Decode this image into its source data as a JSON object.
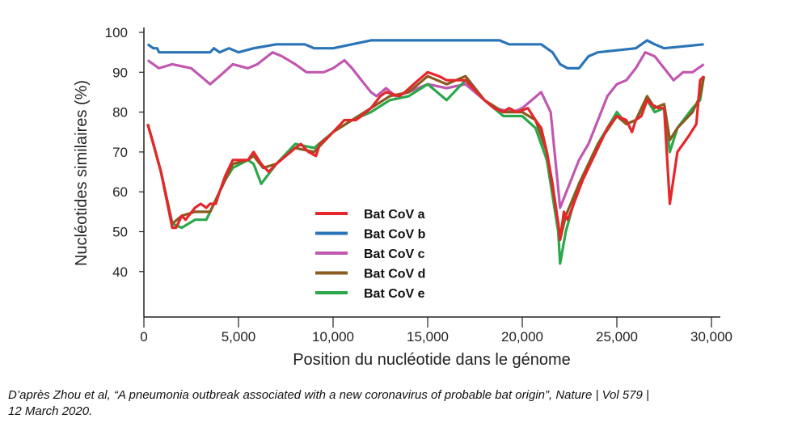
{
  "chart_data": {
    "type": "line",
    "xlabel": "Position du nucléotide dans le génome",
    "ylabel": "Nucléotides similaires (%)",
    "xlim": [
      0,
      30400
    ],
    "ylim": [
      29,
      100
    ],
    "xticks": [
      0,
      5000,
      10000,
      15000,
      20000,
      25000,
      30000
    ],
    "xtick_labels": [
      "0",
      "5,000",
      "10,000",
      "15,000",
      "20,000",
      "25,000",
      "30,000"
    ],
    "yticks": [
      40,
      50,
      60,
      70,
      80,
      90,
      100
    ],
    "ytick_labels": [
      "40",
      "50",
      "60",
      "70",
      "80",
      "90",
      "100"
    ],
    "grid": false,
    "legend_position": "center-left",
    "series": [
      {
        "name": "Bat CoV a",
        "color": "#e5262b",
        "x": [
          200,
          500,
          900,
          1200,
          1500,
          1700,
          1900,
          2000,
          2200,
          2700,
          3000,
          3300,
          3500,
          3800,
          4000,
          4300,
          4700,
          5500,
          5800,
          6200,
          6600,
          7000,
          7500,
          8000,
          8300,
          8700,
          9100,
          9300,
          9800,
          10200,
          10600,
          11200,
          11500,
          12000,
          12500,
          12800,
          13500,
          13800,
          14500,
          15000,
          15600,
          16000,
          17000,
          17400,
          18000,
          18500,
          19000,
          19300,
          19700,
          20300,
          20700,
          21000,
          21300,
          21600,
          21900,
          22000,
          22200,
          22400,
          22800,
          23200,
          23600,
          24000,
          24500,
          25000,
          25500,
          25800,
          26000,
          26300,
          26600,
          26800,
          27200,
          27500,
          27800,
          28200,
          28800,
          29200,
          29400,
          29600
        ],
        "y": [
          77,
          72,
          65,
          58,
          51,
          51,
          53,
          54,
          53,
          56,
          57,
          56,
          57,
          57,
          60,
          64,
          68,
          68,
          70,
          67,
          65,
          67,
          69,
          71,
          72,
          70,
          69,
          72,
          74,
          76,
          78,
          78,
          79,
          81,
          84,
          85,
          84,
          85,
          88,
          90,
          89,
          88,
          88,
          86,
          83,
          81,
          80,
          81,
          80,
          81,
          78,
          76,
          70,
          62,
          52,
          48,
          55,
          53,
          58,
          63,
          67,
          71,
          76,
          79,
          78,
          75,
          78,
          79,
          83,
          82,
          81,
          81,
          57,
          70,
          74,
          77,
          88,
          89
        ]
      },
      {
        "name": "Bat CoV b",
        "color": "#2a74b8",
        "x": [
          200,
          500,
          700,
          800,
          3500,
          3700,
          4000,
          4500,
          5000,
          5800,
          7000,
          8500,
          9000,
          10000,
          11000,
          12000,
          18000,
          18800,
          19300,
          21000,
          21600,
          22000,
          22400,
          23000,
          23500,
          24000,
          26000,
          26600,
          27000,
          27500,
          29600
        ],
        "y": [
          97,
          96,
          96,
          95,
          95,
          96,
          95,
          96,
          95,
          96,
          97,
          97,
          96,
          96,
          97,
          98,
          98,
          98,
          97,
          97,
          95,
          92,
          91,
          91,
          94,
          95,
          96,
          98,
          97,
          96,
          97
        ]
      },
      {
        "name": "Bat CoV c",
        "color": "#c058b0",
        "x": [
          200,
          500,
          800,
          1500,
          2500,
          3000,
          3500,
          4000,
          4700,
          5500,
          6000,
          6800,
          7300,
          8000,
          8600,
          9500,
          10000,
          10600,
          11000,
          11500,
          12000,
          12300,
          12800,
          13300,
          14000,
          15000,
          16000,
          17000,
          18500,
          19500,
          20000,
          20500,
          21000,
          21500,
          22000,
          22500,
          23000,
          23500,
          24000,
          24500,
          25000,
          25500,
          26000,
          26500,
          27000,
          27500,
          28000,
          28500,
          29000,
          29600
        ],
        "y": [
          93,
          92,
          91,
          92,
          91,
          89,
          87,
          89,
          92,
          91,
          92,
          95,
          94,
          92,
          90,
          90,
          91,
          93,
          91,
          88,
          85,
          84,
          86,
          84,
          85,
          87,
          86,
          87,
          81,
          80,
          81,
          83,
          85,
          80,
          56,
          62,
          68,
          72,
          78,
          84,
          87,
          88,
          91,
          95,
          94,
          91,
          88,
          90,
          90,
          92
        ]
      },
      {
        "name": "Bat CoV d",
        "color": "#8a5a1f",
        "x": [
          200,
          500,
          900,
          1500,
          2000,
          2700,
          3500,
          4300,
          4700,
          5500,
          5800,
          6300,
          7000,
          8000,
          9000,
          10000,
          11000,
          12000,
          13000,
          14000,
          15000,
          16000,
          17000,
          18000,
          19000,
          20000,
          20700,
          21300,
          21900,
          22000,
          22300,
          23000,
          24000,
          25000,
          25500,
          26000,
          26600,
          27000,
          27500,
          27800,
          28200,
          29000,
          29400,
          29600
        ],
        "y": [
          77,
          72,
          65,
          52,
          54,
          55,
          55,
          63,
          67,
          68,
          69,
          66,
          67,
          71,
          70,
          75,
          78,
          81,
          84,
          85,
          89,
          87,
          89,
          83,
          80,
          80,
          78,
          70,
          52,
          48,
          54,
          62,
          72,
          79,
          77,
          78,
          84,
          81,
          82,
          73,
          76,
          80,
          84,
          89
        ]
      },
      {
        "name": "Bat CoV e",
        "color": "#2aa84a",
        "x": [
          200,
          500,
          900,
          1500,
          2000,
          2700,
          3300,
          3500,
          4300,
          4700,
          5500,
          5800,
          6200,
          7000,
          8000,
          9000,
          10000,
          11000,
          12000,
          13000,
          14000,
          15000,
          16000,
          17000,
          18000,
          19000,
          20000,
          20700,
          21300,
          21900,
          22000,
          22300,
          23000,
          24000,
          25000,
          25500,
          26000,
          26600,
          27000,
          27500,
          27800,
          28200,
          29000,
          29400,
          29600
        ],
        "y": [
          77,
          72,
          65,
          52,
          51,
          53,
          53,
          55,
          63,
          66,
          68,
          67,
          62,
          67,
          72,
          71,
          75,
          78,
          80,
          83,
          84,
          87,
          83,
          88,
          83,
          79,
          79,
          76,
          68,
          50,
          42,
          50,
          62,
          72,
          80,
          77,
          78,
          83,
          80,
          81,
          70,
          76,
          81,
          83,
          89
        ]
      }
    ]
  },
  "caption": {
    "line1": "D’après Zhou et al, “A pneumonia outbreak associated with a new coronavirus of probable bat origin”, Nature | Vol 579 |",
    "line2": "12 March 2020."
  }
}
